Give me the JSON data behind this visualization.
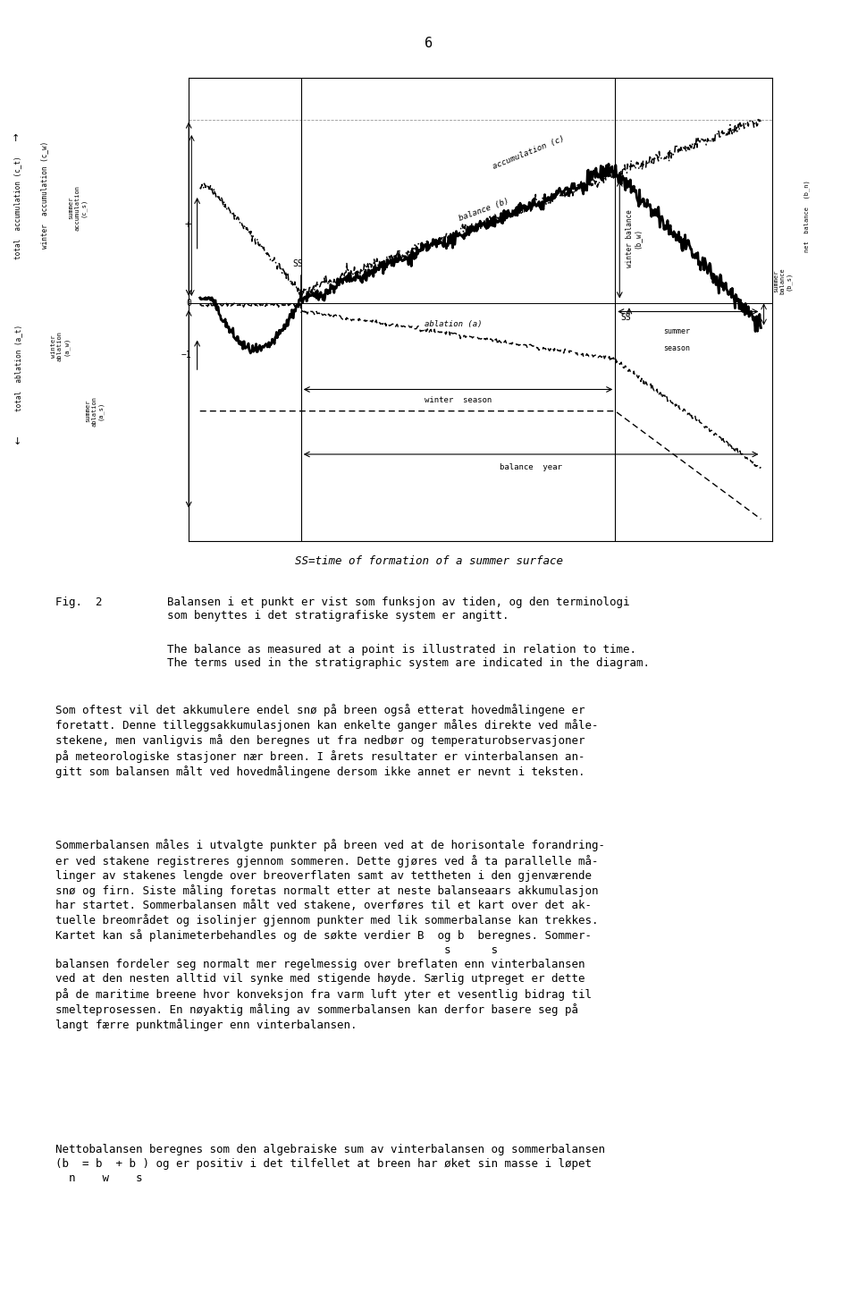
{
  "page_number": "6",
  "fig_caption_no": "Fig.  2",
  "fig_caption_no_text": "Balansen i et punkt er vist som funksjon av tiden, og den terminologi\nsom benyttes i det stratigrafiske system er angitt.",
  "fig_caption_en_text": "The balance as measured at a point is illustrated in relation to time.\nThe terms used in the stratigraphic system are indicated in the diagram.",
  "ss_caption": "SS=time of formation of a summer surface",
  "para1": "Som oftest vil det akkumulere endel snø på breen også etterat hovedmålingene er\nforetatt. Denne tilleggsakkumulasjonen kan enkelte ganger måles direkte ved måle-\nstekene, men vanligvis må den beregnes ut fra nedbør og temperaturobservasjoner\npå meteorologiske stasjoner nær breen. I årets resultater er vinterbalansen an-\ngitt som balansen målt ved hovedmålingene dersom ikke annet er nevnt i teksten.",
  "para2": "Sommerbalansen måles i utvalgte punkter på breen ved at de horisontale forandring-\ner ved stakene registreres gjennom sommeren. Dette gjøres ved å ta parallelle må-\nlinger av stakenes lengde over breoverflaten samt av tettheten i den gjenværende\nsnø og firn. Siste måling foretas normalt etter at neste balanseaars akkumulasjon\nhar startet. Sommerbalansen målt ved stakene, overføres til et kart over det ak-\ntuelle breområdet og isolinjer gjennom punkter med lik sommerbalanse kan trekkes.\nKartet kan så planimeterbehandles og de søkte verdier B  og b  beregnes. Sommer-\n                                                          s      s\nbalansen fordeler seg normalt mer regelmessig over breflaten enn vinterbalansen\nved at den nesten alltid vil synke med stigende høyde. Særlig utpreget er dette\npå de maritime breene hvor konveksjon fra varm luft yter et vesentlig bidrag til\nsmelteprosessen. En nøyaktig måling av sommerbalansen kan derfor basere seg på\nlangt færre punktmålinger enn vinterbalansen.",
  "para3": "Nettobalansen beregnes som den algebraiske sum av vinterbalansen og sommerbalansen\n(b  = b  + b ) og er positiv i det tilfellet at breen har øket sin masse i løpet\n  n    w    s",
  "background_color": "#ffffff",
  "text_color": "#000000"
}
